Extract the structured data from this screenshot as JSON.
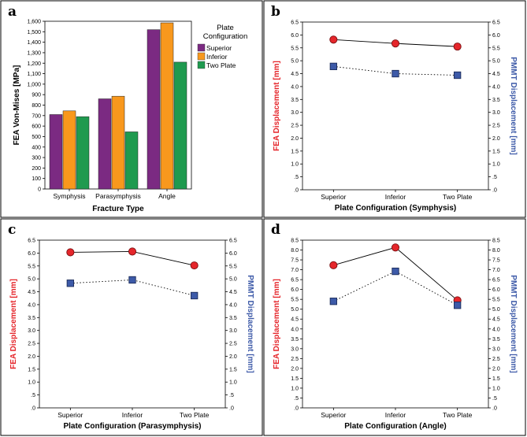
{
  "chart_data": [
    {
      "panel": "a",
      "type": "bar",
      "title": "",
      "categories": [
        "Symphysis",
        "Parasymphysis",
        "Angle"
      ],
      "series": [
        {
          "name": "Superior",
          "color": "#7b2a82",
          "values": [
            710,
            860,
            1520
          ]
        },
        {
          "name": "Inferior",
          "color": "#f8981d",
          "values": [
            745,
            885,
            1585
          ]
        },
        {
          "name": "Two Plate",
          "color": "#1f9a4f",
          "values": [
            690,
            545,
            1210
          ]
        }
      ],
      "legend_title": "Plate Configuration",
      "xlabel": "Fracture Type",
      "ylabel": "FEA Von-Mises [MPa]",
      "ylim": [
        0,
        1600
      ],
      "yticks": [
        "0",
        "100",
        "200",
        "300",
        "400",
        "500",
        "600",
        "700",
        "800",
        "900",
        "1,000",
        "1,100",
        "1,200",
        "1,300",
        "1,400",
        "1,500",
        "1,600"
      ]
    },
    {
      "panel": "b",
      "type": "line",
      "categories": [
        "Superior",
        "Inferior",
        "Two Plate"
      ],
      "series": [
        {
          "name": "FEA Displacement",
          "axis": "left",
          "marker": "circle",
          "line": "solid",
          "color": "#e5262b",
          "values": [
            5.82,
            5.67,
            5.55
          ]
        },
        {
          "name": "PMMT Displacement",
          "axis": "right",
          "marker": "square",
          "line": "dotted",
          "color": "#3d5aa8",
          "values": [
            4.78,
            4.5,
            4.44
          ]
        }
      ],
      "xlabel": "Plate Configuration (Symphysis)",
      "ylabel_left": "FEA Displacement [mm]",
      "ylabel_right": "PMMT Displacement [mm]",
      "ylim": [
        0,
        6.5
      ],
      "yticks": [
        ".0",
        ".5",
        "1.0",
        "1.5",
        "2.0",
        "2.5",
        "3.0",
        "3.5",
        "4.0",
        "4.5",
        "5.0",
        "5.5",
        "6.0",
        "6.5"
      ]
    },
    {
      "panel": "c",
      "type": "line",
      "categories": [
        "Superior",
        "Inferior",
        "Two Plate"
      ],
      "series": [
        {
          "name": "FEA Displacement",
          "axis": "left",
          "marker": "circle",
          "line": "solid",
          "color": "#e5262b",
          "values": [
            6.03,
            6.06,
            5.52
          ]
        },
        {
          "name": "PMMT Displacement",
          "axis": "right",
          "marker": "square",
          "line": "dotted",
          "color": "#3d5aa8",
          "values": [
            4.83,
            4.96,
            4.35
          ]
        }
      ],
      "xlabel": "Plate Configuration (Parasymphysis)",
      "ylabel_left": "FEA Displacement [mm]",
      "ylabel_right": "PMMT Displacement [mm]",
      "ylim": [
        0,
        6.5
      ],
      "yticks": [
        ".0",
        ".5",
        "1.0",
        "1.5",
        "2.0",
        "2.5",
        "3.0",
        "3.5",
        "4.0",
        "4.5",
        "5.0",
        "5.5",
        "6.0",
        "6.5"
      ]
    },
    {
      "panel": "d",
      "type": "line",
      "categories": [
        "Superior",
        "Inferior",
        "Two Plate"
      ],
      "series": [
        {
          "name": "FEA Displacement",
          "axis": "left",
          "marker": "circle",
          "line": "solid",
          "color": "#e5262b",
          "values": [
            7.23,
            8.13,
            5.45
          ]
        },
        {
          "name": "PMMT Displacement",
          "axis": "right",
          "marker": "square",
          "line": "dotted",
          "color": "#3d5aa8",
          "values": [
            5.4,
            6.92,
            5.2
          ]
        }
      ],
      "xlabel": "Plate Configuration (Angle)",
      "ylabel_left": "FEA Displacement [mm]",
      "ylabel_right": "PMMT Displacement [mm]",
      "ylim": [
        0,
        8.5
      ],
      "yticks": [
        ".0",
        ".5",
        "1.0",
        "1.5",
        "2.0",
        "2.5",
        "3.0",
        "3.5",
        "4.0",
        "4.5",
        "5.0",
        "5.5",
        "6.0",
        "6.5",
        "7.0",
        "7.5",
        "8.0",
        "8.5"
      ]
    }
  ],
  "colors": {
    "left_axis_title": "#e5262b",
    "right_axis_title": "#3d5aa8",
    "circle_stroke": "#7a0e10",
    "square_stroke": "#1c2c5a"
  }
}
